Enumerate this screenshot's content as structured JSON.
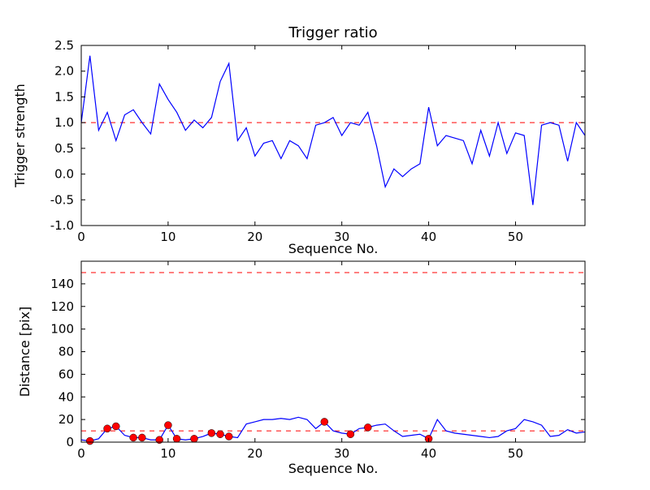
{
  "figure": {
    "background": "#ffffff",
    "line_color": "#0000ff",
    "threshold_color": "#ff0000",
    "marker_color": "#ff0000",
    "axis_color": "#000000"
  },
  "chart_data": [
    {
      "type": "line",
      "title": "Trigger ratio",
      "xlabel": "Sequence No.",
      "ylabel": "Trigger strength",
      "xlim": [
        0,
        58
      ],
      "ylim": [
        -1.0,
        2.5
      ],
      "xticks": [
        0,
        10,
        20,
        30,
        40,
        50
      ],
      "xticklabels": [
        "0",
        "10",
        "20",
        "30",
        "40",
        "50"
      ],
      "yticks": [
        -1.0,
        -0.5,
        0.0,
        0.5,
        1.0,
        1.5,
        2.0,
        2.5
      ],
      "yticklabels": [
        "-1.0",
        "-0.5",
        "0.0",
        "0.5",
        "1.0",
        "1.5",
        "2.0",
        "2.5"
      ],
      "grid": false,
      "legend": "none",
      "hlines": [
        {
          "y": 1.0,
          "style": "dashed",
          "color": "#ff0000"
        }
      ],
      "series": [
        {
          "name": "trigger-ratio",
          "color": "#0000ff",
          "values": [
            1.0,
            2.3,
            0.85,
            1.2,
            0.65,
            1.15,
            1.25,
            1.0,
            0.78,
            1.75,
            1.45,
            1.2,
            0.85,
            1.05,
            0.9,
            1.1,
            1.8,
            2.15,
            0.65,
            0.9,
            0.35,
            0.6,
            0.65,
            0.3,
            0.65,
            0.55,
            0.3,
            0.95,
            1.0,
            1.1,
            0.75,
            1.0,
            0.95,
            1.2,
            0.55,
            -0.25,
            0.1,
            -0.05,
            0.1,
            0.2,
            1.3,
            0.55,
            0.75,
            0.7,
            0.65,
            0.2,
            0.85,
            0.35,
            1.0,
            0.4,
            0.8,
            0.75,
            -0.6,
            0.95,
            1.0,
            0.95,
            0.25,
            1.0,
            0.75
          ]
        }
      ]
    },
    {
      "type": "line",
      "title": "",
      "xlabel": "Sequence No.",
      "ylabel": "Distance [pix]",
      "xlim": [
        0,
        58
      ],
      "ylim": [
        0,
        160
      ],
      "xticks": [
        0,
        10,
        20,
        30,
        40,
        50
      ],
      "xticklabels": [
        "0",
        "10",
        "20",
        "30",
        "40",
        "50"
      ],
      "yticks": [
        0,
        20,
        40,
        60,
        80,
        100,
        120,
        140
      ],
      "yticklabels": [
        "0",
        "20",
        "40",
        "60",
        "80",
        "100",
        "120",
        "140"
      ],
      "grid": false,
      "legend": "none",
      "hlines": [
        {
          "y": 150,
          "style": "dashed",
          "color": "#ff0000"
        },
        {
          "y": 10,
          "style": "dashed",
          "color": "#ff0000"
        }
      ],
      "series": [
        {
          "name": "distance",
          "color": "#0000ff",
          "values": [
            2,
            1,
            3,
            12,
            14,
            6,
            4,
            4,
            2,
            2,
            15,
            3,
            2,
            3,
            5,
            8,
            7,
            5,
            4,
            16,
            18,
            20,
            20,
            21,
            20,
            22,
            20,
            12,
            18,
            10,
            8,
            7,
            12,
            13,
            15,
            16,
            10,
            5,
            6,
            7,
            3,
            20,
            10,
            8,
            7,
            6,
            5,
            4,
            5,
            10,
            12,
            20,
            18,
            15,
            5,
            6,
            11,
            8,
            9
          ]
        }
      ],
      "markers": {
        "name": "trigger-event-markers",
        "color": "#ff0000",
        "points": [
          [
            1,
            1
          ],
          [
            3,
            12
          ],
          [
            4,
            14
          ],
          [
            6,
            4
          ],
          [
            7,
            4
          ],
          [
            9,
            2
          ],
          [
            10,
            15
          ],
          [
            11,
            3
          ],
          [
            13,
            3
          ],
          [
            15,
            8
          ],
          [
            16,
            7
          ],
          [
            17,
            5
          ],
          [
            28,
            18
          ],
          [
            31,
            7
          ],
          [
            33,
            13
          ],
          [
            40,
            3
          ]
        ]
      }
    }
  ]
}
